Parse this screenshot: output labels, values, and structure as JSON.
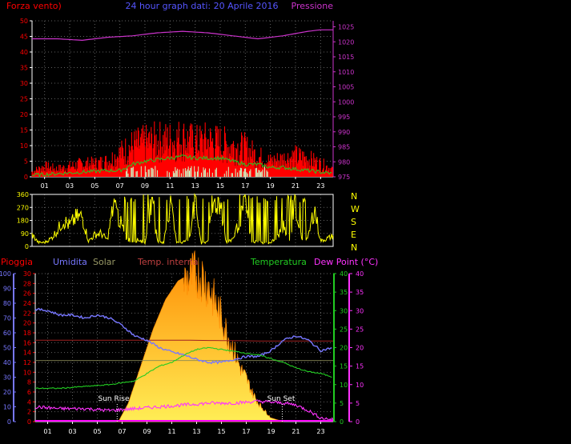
{
  "header": {
    "left_label": "Forza vento)",
    "title": "24 hour graph dati:  20 Aprile 2016",
    "right_label": "Pressione"
  },
  "bottom_header": {
    "pioggia": "Pioggia",
    "umidita": "Umidita",
    "solar": "Solar",
    "temp_interna": "Temp. interna",
    "temperatura": "Temperatura",
    "dew_point": "Dew Point (°C)"
  },
  "annotations": {
    "sun_rise": "Sun Rise",
    "sun_set": "Sun Set"
  },
  "compass": [
    "N",
    "W",
    "S",
    "E",
    "N"
  ],
  "colors": {
    "wind": "#ff0000",
    "wind_avg": "#22cc22",
    "wind_low": "#ccffcc",
    "pressure": "#cc33cc",
    "direction": "#ffff00",
    "humidity": "#7777ff",
    "solar": "#ffaa00",
    "temp_in": "#a02020",
    "temperature": "#22cc22",
    "dewpoint": "#ff33ff",
    "rain": "#ff00ff",
    "axis": "#ffffff",
    "grid": "#606060"
  },
  "chart_data": [
    {
      "type": "line",
      "name": "wind_pressure",
      "x_ticks": [
        "01",
        "03",
        "05",
        "07",
        "09",
        "11",
        "13",
        "15",
        "17",
        "19",
        "21",
        "23"
      ],
      "left_axis": {
        "label": "Forza vento)",
        "ylim": [
          0,
          50
        ],
        "ticks": [
          0,
          5,
          10,
          15,
          20,
          25,
          30,
          35,
          40,
          45,
          50
        ]
      },
      "right_axis": {
        "label": "Pressione",
        "ylim": [
          975,
          1027
        ],
        "ticks": [
          975,
          980,
          985,
          990,
          995,
          1000,
          1005,
          1010,
          1015,
          1020,
          1025
        ]
      },
      "series": [
        {
          "key": "pressure",
          "hours": [
            0,
            2,
            4,
            6,
            8,
            10,
            12,
            14,
            16,
            18,
            20,
            22,
            23,
            24
          ],
          "values": [
            1021,
            1021,
            1020.5,
            1021.5,
            1022,
            1023,
            1023.5,
            1023,
            1022,
            1021,
            1022,
            1023.5,
            1024,
            1024
          ]
        },
        {
          "key": "wind_gust",
          "hours": [
            0,
            1,
            2,
            3,
            4,
            5,
            6,
            7,
            8,
            9,
            10,
            11,
            12,
            13,
            14,
            15,
            16,
            17,
            18,
            19,
            20,
            21,
            22,
            23,
            24
          ],
          "values": [
            2,
            4,
            3,
            4,
            5,
            5,
            6,
            9,
            12,
            13,
            14,
            14,
            15,
            13,
            14,
            13,
            12,
            11,
            8,
            6,
            7,
            8,
            7,
            5,
            3
          ]
        },
        {
          "key": "wind_avg",
          "hours": [
            0,
            2,
            4,
            6,
            7,
            8,
            9,
            10,
            11,
            12,
            13,
            14,
            15,
            16,
            17,
            18,
            19,
            20,
            21,
            22,
            23,
            24
          ],
          "values": [
            0.5,
            1,
            1.5,
            2,
            2,
            4,
            5,
            5.5,
            6,
            6.5,
            6,
            6,
            6,
            5,
            4,
            4,
            3,
            3,
            2.5,
            2,
            1.5,
            1
          ]
        }
      ]
    },
    {
      "type": "line",
      "name": "wind_direction",
      "ylim": [
        0,
        360
      ],
      "y_ticks": [
        0,
        90,
        180,
        270,
        360
      ],
      "hours": [
        0,
        0.5,
        1,
        1.5,
        2,
        2.5,
        3,
        3.5,
        4,
        4.5,
        5,
        5.5,
        6,
        6.5,
        7,
        7.5,
        8,
        8.5,
        9,
        9.5,
        10,
        10.5,
        11,
        11.5,
        12,
        12.5,
        13,
        13.5,
        14,
        14.5,
        15,
        15.5,
        16,
        16.5,
        17,
        17.5,
        18,
        18.5,
        19,
        19.5,
        20,
        20.5,
        21,
        21.5,
        22,
        22.5,
        23,
        23.5,
        24
      ],
      "values": [
        90,
        30,
        30,
        60,
        120,
        200,
        160,
        220,
        230,
        40,
        90,
        100,
        50,
        320,
        200,
        60,
        40,
        50,
        30,
        350,
        40,
        30,
        340,
        40,
        30,
        60,
        340,
        20,
        40,
        340,
        320,
        20,
        60,
        180,
        340,
        30,
        40,
        20,
        30,
        60,
        160,
        30,
        320,
        40,
        60,
        300,
        40,
        60,
        80
      ]
    },
    {
      "type": "line",
      "name": "weather",
      "x_ticks": [
        "01",
        "03",
        "05",
        "07",
        "09",
        "11",
        "13",
        "15",
        "17",
        "19",
        "21",
        "23"
      ],
      "rain_axis": {
        "label": "Pioggia",
        "ylim": [
          0,
          30
        ],
        "ticks": [
          0,
          2,
          4,
          6,
          8,
          10,
          12,
          14,
          16,
          18,
          20,
          22,
          24,
          26,
          28,
          30
        ]
      },
      "humidity_axis": {
        "label": "Umidita",
        "ylim": [
          0,
          100
        ],
        "ticks": [
          0,
          10,
          20,
          30,
          40,
          50,
          60,
          70,
          80,
          90,
          100
        ]
      },
      "temperature_axis": {
        "label": "Temperatura",
        "ylim": [
          0,
          40
        ],
        "ticks": [
          0,
          5,
          10,
          15,
          20,
          25,
          30,
          35,
          40
        ]
      },
      "dewpoint_axis": {
        "label": "Dew Point (°C)",
        "ylim": [
          0,
          40
        ],
        "ticks": [
          0,
          5,
          10,
          15,
          20,
          25,
          30,
          35,
          40
        ]
      },
      "series": [
        {
          "key": "humidity",
          "hours": [
            0,
            1,
            2,
            3,
            4,
            5,
            6,
            7,
            8,
            9,
            10,
            11,
            12,
            13,
            14,
            15,
            16,
            17,
            18,
            19,
            20,
            21,
            22,
            23,
            24
          ],
          "values": [
            76,
            75,
            72,
            72,
            70,
            72,
            70,
            65,
            58,
            55,
            50,
            47,
            45,
            42,
            40,
            40,
            42,
            44,
            44,
            48,
            55,
            58,
            55,
            48,
            50
          ]
        },
        {
          "key": "temp_in",
          "hours": [
            0,
            6,
            12,
            18,
            24
          ],
          "values": [
            22,
            22,
            22,
            21.8,
            21.8
          ]
        },
        {
          "key": "temperature",
          "hours": [
            0,
            2,
            4,
            6,
            7,
            8,
            9,
            10,
            11,
            12,
            13,
            14,
            15,
            16,
            17,
            18,
            19,
            20,
            21,
            22,
            23,
            24
          ],
          "values": [
            9,
            9,
            9.5,
            10,
            10.5,
            11,
            13,
            15,
            16,
            18,
            19.5,
            20,
            19.5,
            19,
            18.5,
            18,
            17,
            16,
            14.5,
            13.5,
            13,
            12
          ]
        },
        {
          "key": "solar",
          "hours": [
            0,
            6,
            6.7,
            7.5,
            8.5,
            9.5,
            10.5,
            11.5,
            12.5,
            13,
            13.5,
            14,
            14.5,
            15,
            15.5,
            16,
            16.5,
            17,
            17.5,
            18,
            18.5,
            19,
            19.5,
            20,
            24
          ],
          "values": [
            0,
            0,
            0,
            5,
            15,
            25,
            33,
            38,
            40,
            41,
            40,
            37,
            33,
            29,
            24,
            20,
            15,
            12,
            8,
            5,
            3,
            1,
            0.5,
            0,
            0
          ]
        },
        {
          "key": "dewpoint",
          "hours": [
            0,
            2,
            4,
            6,
            8,
            10,
            12,
            14,
            16,
            18,
            20,
            21,
            22,
            23,
            24
          ],
          "values": [
            4,
            3.5,
            3.5,
            3,
            3.5,
            4,
            4.5,
            5,
            5,
            5.5,
            5,
            4.5,
            3,
            1,
            0.5
          ]
        }
      ]
    }
  ]
}
